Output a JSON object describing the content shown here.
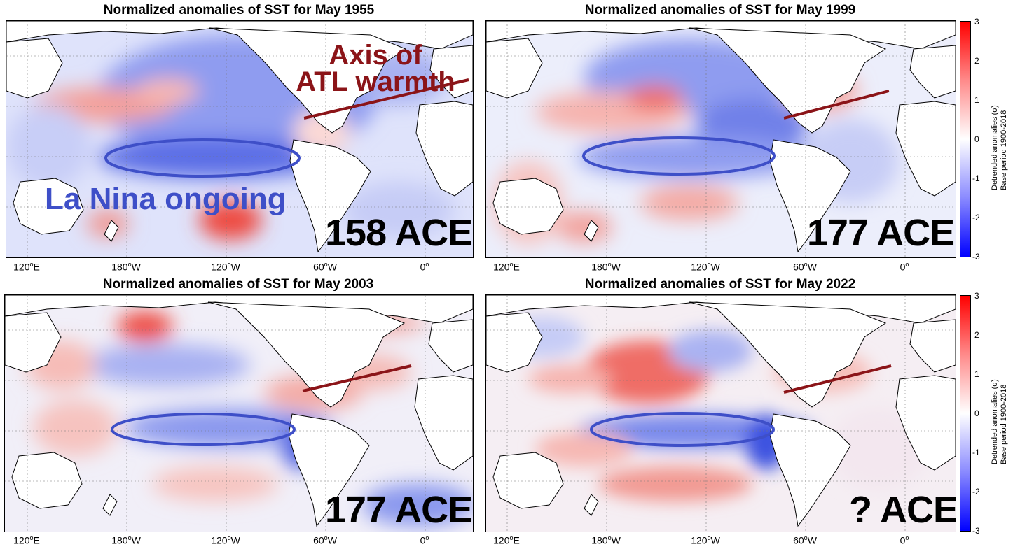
{
  "panels": [
    {
      "title": "Normalized anomalies of SST for May 1955",
      "ace": "158 ACE",
      "annotations": {
        "la_nina": "La Nina ongoing",
        "axis_line1": "Axis of",
        "axis_line2": "ATL warmth"
      }
    },
    {
      "title": "Normalized anomalies of SST for May 1999",
      "ace": "177 ACE"
    },
    {
      "title": "Normalized anomalies of SST for May 2003",
      "ace": "177 ACE"
    },
    {
      "title": "Normalized anomalies of SST for May 2022",
      "ace": "? ACE"
    }
  ],
  "x_ticks": [
    "120",
    "180",
    "120",
    "60",
    "0"
  ],
  "x_tick_suffix": [
    "E",
    "W",
    "W",
    "W",
    ""
  ],
  "colorbar": {
    "ticks": [
      "3",
      "2",
      "1",
      "0",
      "-1",
      "-2",
      "-3"
    ],
    "label_line1": "Detrended anomalies (σ)",
    "label_line2": "Base period 1900-2018",
    "colors": [
      "#0000ff",
      "#ffffff",
      "#ff0000"
    ]
  },
  "colors": {
    "la_nina_ellipse": "#3e4fc8",
    "atl_axis": "#8b1418",
    "warm": "#e8433a",
    "cold": "#3b4fd6"
  }
}
